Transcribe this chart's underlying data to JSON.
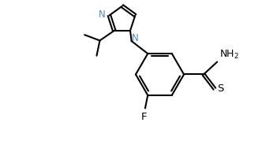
{
  "bg_color": "#ffffff",
  "line_color": "#000000",
  "N_color": "#5588bb",
  "figsize": [
    3.32,
    1.79
  ],
  "dpi": 100,
  "xlim": [
    0,
    10
  ],
  "ylim": [
    0,
    5.4
  ]
}
